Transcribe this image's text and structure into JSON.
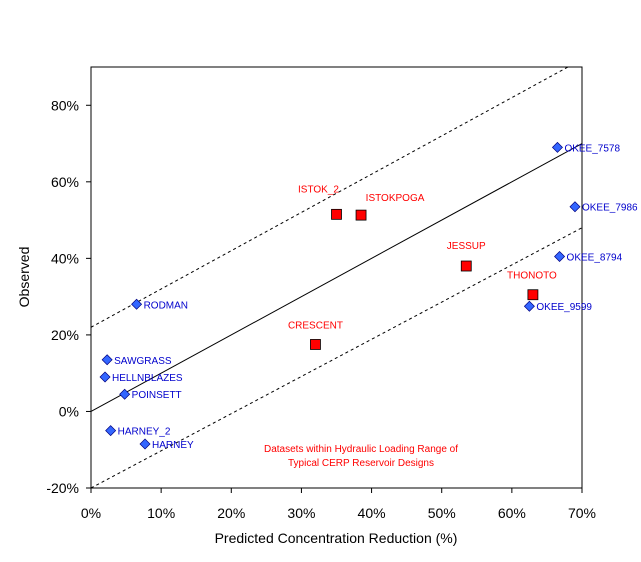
{
  "chart_data": {
    "type": "scatter",
    "title": "",
    "xlabel": "Predicted Concentration Reduction (%)",
    "ylabel": "Observed",
    "xlim": [
      0,
      70
    ],
    "ylim": [
      -20,
      90
    ],
    "x_ticks": [
      "0%",
      "10%",
      "20%",
      "30%",
      "40%",
      "50%",
      "60%",
      "70%"
    ],
    "y_ticks": [
      "-20%",
      "0%",
      "20%",
      "40%",
      "60%",
      "80%"
    ],
    "grid": false,
    "legend": "none",
    "colors": {
      "blue_series": "#3366ff",
      "blue_label": "#0000cc",
      "red_series": "#ff0000",
      "red_label": "#ff0000",
      "lines": "#000000"
    },
    "series": [
      {
        "marker": "diamond",
        "points": [
          {
            "label": "OKEE_7578",
            "x": 66.5,
            "y": 69
          },
          {
            "label": "OKEE_7986",
            "x": 69.0,
            "y": 53.5
          },
          {
            "label": "OKEE_8794",
            "x": 66.8,
            "y": 40.5
          },
          {
            "label": "OKEE_9599",
            "x": 62.5,
            "y": 27.5
          },
          {
            "label": "RODMAN",
            "x": 6.5,
            "y": 28
          },
          {
            "label": "SAWGRASS",
            "x": 2.3,
            "y": 13.5
          },
          {
            "label": "HELLNBLAZES",
            "x": 2.0,
            "y": 9
          },
          {
            "label": "POINSETT",
            "x": 4.8,
            "y": 4.5
          },
          {
            "label": "HARNEY_2",
            "x": 2.8,
            "y": -5
          },
          {
            "label": "HARNEY",
            "x": 7.7,
            "y": -8.5
          }
        ]
      },
      {
        "marker": "square",
        "points": [
          {
            "label": "ISTOK_2",
            "x": 35.0,
            "y": 51.5
          },
          {
            "label": "ISTOKPOGA",
            "x": 38.5,
            "y": 51.3
          },
          {
            "label": "JESSUP",
            "x": 53.5,
            "y": 38
          },
          {
            "label": "THONOTO",
            "x": 63.0,
            "y": 30.5
          },
          {
            "label": "CRESCENT",
            "x": 32.0,
            "y": 17.5
          }
        ]
      }
    ],
    "reference_lines": [
      {
        "style": "solid",
        "x1": 0,
        "y1": 0,
        "x2": 70,
        "y2": 70
      },
      {
        "style": "dashed",
        "x1": 0,
        "y1": 22,
        "x2": 70,
        "y2": 92
      },
      {
        "style": "dashed",
        "x1": 0,
        "y1": -20,
        "x2": 70,
        "y2": 48
      }
    ],
    "annotation": [
      "Datasets within Hydraulic Loading Range of",
      "Typical CERP Reservoir Designs"
    ]
  }
}
